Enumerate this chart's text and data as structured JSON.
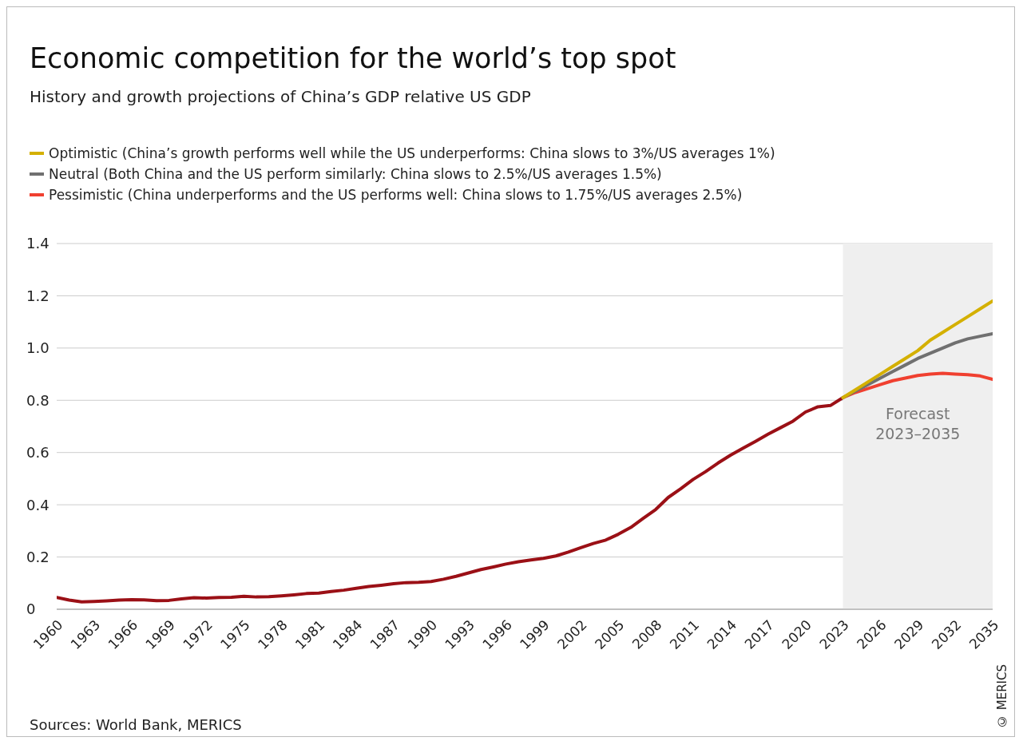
{
  "chart_data": {
    "type": "line",
    "title": "Economic competition for the world’s top spot",
    "subtitle": "History and growth projections of China’s GDP relative US GDP",
    "xlim": [
      1960,
      2035
    ],
    "xticks": [
      1960,
      1963,
      1966,
      1969,
      1972,
      1975,
      1978,
      1981,
      1984,
      1987,
      1990,
      1993,
      1996,
      1999,
      2002,
      2005,
      2008,
      2011,
      2014,
      2017,
      2020,
      2023,
      2026,
      2029,
      2032,
      2035
    ],
    "ylim": [
      0,
      1.4
    ],
    "yticks": [
      0,
      0.2,
      0.4,
      0.6,
      0.8,
      {
        "value": 1,
        "label": "1.0"
      },
      1.2,
      1.4
    ],
    "grid": "y",
    "legend": "top left",
    "marker": "none",
    "line_style": "solid",
    "series": [
      {
        "name": "Optimistic (China’s growth performs well while the US underperforms: China slows to 3%/US averages 1%)",
        "color": "#d4b000",
        "x": [
          2023,
          2024,
          2025,
          2026,
          2027,
          2028,
          2029,
          2030,
          2031,
          2032,
          2033,
          2034,
          2035
        ],
        "values": [
          0.81,
          0.84,
          0.87,
          0.9,
          0.93,
          0.96,
          0.99,
          1.03,
          1.06,
          1.09,
          1.12,
          1.15,
          1.18
        ]
      },
      {
        "name": "Neutral (Both China and the US perform similarly: China slows to 2.5%/US averages 1.5%)",
        "color": "#707070",
        "x": [
          2023,
          2024,
          2025,
          2026,
          2027,
          2028,
          2029,
          2030,
          2031,
          2032,
          2033,
          2034,
          2035
        ],
        "values": [
          0.81,
          0.835,
          0.86,
          0.885,
          0.91,
          0.935,
          0.96,
          0.98,
          1.0,
          1.02,
          1.035,
          1.045,
          1.055
        ]
      },
      {
        "name": "Pessimistic (China underperforms and the US performs well: China slows to 1.75%/US averages 2.5%)",
        "color": "#f04030",
        "x": [
          2023,
          2024,
          2025,
          2026,
          2027,
          2028,
          2029,
          2030,
          2031,
          2032,
          2033,
          2034,
          2035
        ],
        "values": [
          0.81,
          0.83,
          0.845,
          0.86,
          0.875,
          0.885,
          0.895,
          0.9,
          0.903,
          0.9,
          0.898,
          0.893,
          0.88
        ]
      },
      {
        "color": "#9b1016",
        "x": [
          1960,
          1961,
          1962,
          1963,
          1964,
          1965,
          1966,
          1967,
          1968,
          1969,
          1970,
          1971,
          1972,
          1973,
          1974,
          1975,
          1976,
          1977,
          1978,
          1979,
          1980,
          1981,
          1982,
          1983,
          1984,
          1985,
          1986,
          1987,
          1988,
          1989,
          1990,
          1991,
          1992,
          1993,
          1994,
          1995,
          1996,
          1997,
          1998,
          1999,
          2000,
          2001,
          2002,
          2003,
          2004,
          2005,
          2006,
          2007,
          2008,
          2009,
          2010,
          2011,
          2012,
          2013,
          2014,
          2015,
          2016,
          2017,
          2018,
          2019,
          2020,
          2021,
          2022,
          2023
        ],
        "values": [
          0.045,
          0.035,
          0.028,
          0.03,
          0.032,
          0.035,
          0.037,
          0.036,
          0.033,
          0.034,
          0.04,
          0.044,
          0.043,
          0.045,
          0.046,
          0.05,
          0.047,
          0.048,
          0.051,
          0.055,
          0.06,
          0.062,
          0.068,
          0.073,
          0.08,
          0.087,
          0.092,
          0.098,
          0.102,
          0.103,
          0.106,
          0.115,
          0.126,
          0.139,
          0.152,
          0.162,
          0.173,
          0.182,
          0.189,
          0.195,
          0.204,
          0.219,
          0.236,
          0.252,
          0.265,
          0.287,
          0.313,
          0.348,
          0.382,
          0.428,
          0.461,
          0.497,
          0.527,
          0.56,
          0.59,
          0.617,
          0.643,
          0.67,
          0.695,
          0.72,
          0.755,
          0.775,
          0.78,
          0.81
        ]
      }
    ],
    "bands": [
      {
        "axis": "x",
        "from": 2023,
        "to": 2035,
        "label": "Forecast 2023–2035",
        "color": "#efefef"
      }
    ],
    "annotations": [
      "Sources: World Bank, MERICS",
      "© MERICS"
    ]
  }
}
